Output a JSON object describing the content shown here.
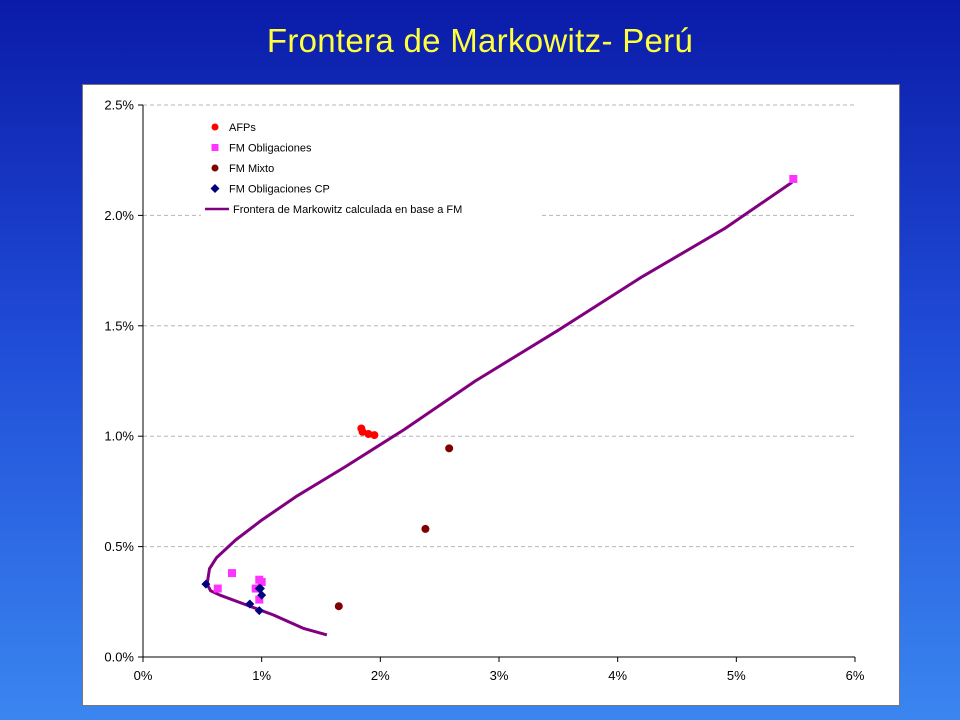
{
  "slide": {
    "title": "Frontera de Markowitz- Perú"
  },
  "chart_data": {
    "type": "scatter",
    "title": "Frontera de Markowitz- Perú",
    "xlabel": "",
    "ylabel": "",
    "xlim": [
      0,
      6
    ],
    "ylim": [
      0,
      2.5
    ],
    "x_ticks": [
      "0%",
      "1%",
      "2%",
      "3%",
      "4%",
      "5%",
      "6%"
    ],
    "y_ticks": [
      "0.0%",
      "0.5%",
      "1.0%",
      "1.5%",
      "2.0%",
      "2.5%"
    ],
    "y_gridlines": "dashed",
    "legend_position": "top-left",
    "series": [
      {
        "name": "AFPs",
        "marker": "circle",
        "color": "#ff0000",
        "points": [
          [
            1.84,
            1.035
          ],
          [
            1.85,
            1.02
          ],
          [
            1.9,
            1.01
          ],
          [
            1.95,
            1.005
          ]
        ]
      },
      {
        "name": "FM Obligaciones",
        "marker": "square",
        "color": "#ff33ff",
        "points": [
          [
            5.48,
            2.165
          ],
          [
            0.63,
            0.31
          ],
          [
            0.75,
            0.38
          ],
          [
            0.95,
            0.31
          ],
          [
            0.98,
            0.35
          ],
          [
            1.0,
            0.34
          ],
          [
            0.98,
            0.26
          ]
        ]
      },
      {
        "name": "FM Mixto",
        "marker": "circle",
        "color": "#800000",
        "points": [
          [
            2.58,
            0.945
          ],
          [
            2.38,
            0.58
          ],
          [
            1.65,
            0.23
          ]
        ]
      },
      {
        "name": "FM Obligaciones CP",
        "marker": "diamond",
        "color": "#000080",
        "points": [
          [
            0.53,
            0.33
          ],
          [
            0.9,
            0.24
          ],
          [
            0.98,
            0.31
          ],
          [
            1.0,
            0.28
          ],
          [
            0.98,
            0.21
          ],
          [
            0.99,
            0.31
          ]
        ]
      },
      {
        "name": "Frontera de Markowitz calculada en base a FM",
        "marker": "line",
        "color": "#800080",
        "points": [
          [
            1.55,
            0.1
          ],
          [
            1.35,
            0.13
          ],
          [
            1.1,
            0.19
          ],
          [
            0.85,
            0.24
          ],
          [
            0.65,
            0.28
          ],
          [
            0.57,
            0.3
          ],
          [
            0.54,
            0.33
          ],
          [
            0.56,
            0.4
          ],
          [
            0.62,
            0.45
          ],
          [
            0.78,
            0.53
          ],
          [
            1.0,
            0.62
          ],
          [
            1.3,
            0.73
          ],
          [
            1.7,
            0.86
          ],
          [
            2.2,
            1.03
          ],
          [
            2.8,
            1.25
          ],
          [
            3.5,
            1.48
          ],
          [
            4.2,
            1.72
          ],
          [
            4.9,
            1.94
          ],
          [
            5.47,
            2.15
          ]
        ]
      }
    ]
  }
}
